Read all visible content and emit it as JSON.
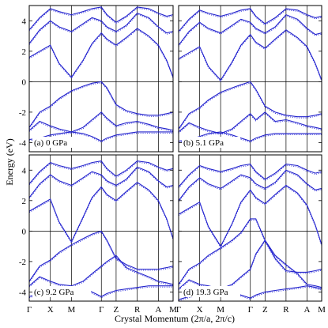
{
  "chart_data": {
    "type": "line",
    "ylabel": "Energy (eV)",
    "xlabel": "Crystal Momentum (2π/a, 2π/c)",
    "ylim": [
      -4.6,
      5.0
    ],
    "yticks": [
      -4,
      -2,
      0,
      2,
      4
    ],
    "kpoints": [
      "Γ",
      "X",
      "M",
      "Γ",
      "Z",
      "R",
      "A",
      "M"
    ],
    "kpositions": [
      0,
      0.707,
      1.414,
      2.414,
      2.908,
      3.615,
      4.322,
      4.815
    ],
    "panels": [
      {
        "label": "(a) 0 GPa",
        "series": [
          {
            "x": [
              0,
              0.35,
              0.707,
              1.0,
              1.414,
              1.8,
              2.1,
              2.414,
              2.6,
              2.908,
              3.25,
              3.615,
              4.0,
              4.322,
              4.6,
              4.815
            ],
            "y": [
              -3.8,
              -3.7,
              -3.5,
              -3.4,
              -3.3,
              -3.4,
              -3.6,
              -3.9,
              -3.7,
              -3.5,
              -3.4,
              -3.3,
              -3.3,
              -3.3,
              -3.3,
              -3.3
            ]
          },
          {
            "x": [
              0,
              0.35,
              0.707,
              1.0,
              1.414,
              1.8,
              2.1,
              2.414,
              2.6,
              2.908,
              3.25,
              3.615,
              4.0,
              4.322,
              4.6,
              4.815
            ],
            "y": [
              -3.2,
              -2.6,
              -2.9,
              -3.1,
              -3.3,
              -3.0,
              -2.5,
              -2.0,
              -2.4,
              -2.9,
              -2.7,
              -2.6,
              -2.8,
              -3.0,
              -3.1,
              -3.2
            ]
          },
          {
            "x": [
              0,
              0.35,
              0.707,
              1.0,
              1.414,
              1.8,
              2.1,
              2.414,
              2.6,
              2.908,
              3.25,
              3.615,
              4.0,
              4.322,
              4.6,
              4.815
            ],
            "y": [
              -3.0,
              -2.0,
              -1.6,
              -1.1,
              -0.6,
              -0.3,
              -0.1,
              0.0,
              -0.4,
              -1.5,
              -1.9,
              -2.1,
              -2.2,
              -2.2,
              -2.1,
              -2.0
            ]
          },
          {
            "x": [
              0,
              0.35,
              0.707,
              1.0,
              1.414,
              1.8,
              2.1,
              2.414,
              2.6,
              2.908,
              3.25,
              3.615,
              4.0,
              4.322,
              4.6,
              4.815
            ],
            "y": [
              1.6,
              2.0,
              2.4,
              1.2,
              0.3,
              1.4,
              2.5,
              3.2,
              2.8,
              2.4,
              2.9,
              3.5,
              3.0,
              2.4,
              1.4,
              0.3
            ]
          },
          {
            "x": [
              0,
              0.35,
              0.707,
              1.0,
              1.414,
              1.8,
              2.1,
              2.414,
              2.6,
              2.908,
              3.25,
              3.615,
              4.0,
              4.322,
              4.6,
              4.815
            ],
            "y": [
              2.5,
              3.4,
              4.0,
              3.6,
              3.3,
              3.8,
              4.2,
              4.0,
              3.6,
              3.3,
              3.7,
              4.5,
              4.2,
              3.6,
              3.2,
              3.3
            ]
          },
          {
            "x": [
              0,
              0.35,
              0.707,
              1.0,
              1.414,
              1.8,
              2.1,
              2.414,
              2.6,
              2.908,
              3.25,
              3.615,
              4.0,
              4.322,
              4.6,
              4.815
            ],
            "y": [
              3.4,
              4.2,
              4.8,
              4.6,
              4.4,
              4.6,
              4.8,
              4.9,
              4.4,
              3.9,
              4.3,
              4.9,
              4.8,
              4.5,
              4.3,
              4.4
            ]
          }
        ]
      },
      {
        "label": "(b) 5.1 GPa",
        "series": [
          {
            "x": [
              0,
              0.35,
              0.707,
              1.0,
              1.414,
              1.8,
              2.1,
              2.414,
              2.6,
              2.908,
              3.25,
              3.615,
              4.0,
              4.322,
              4.6,
              4.815
            ],
            "y": [
              -3.9,
              -3.8,
              -3.6,
              -3.4,
              -3.3,
              -3.5,
              -3.7,
              -3.9,
              -3.7,
              -3.5,
              -3.4,
              -3.4,
              -3.4,
              -3.4,
              -3.4,
              -3.4
            ]
          },
          {
            "x": [
              0,
              0.35,
              0.707,
              1.0,
              1.414,
              1.8,
              2.1,
              2.414,
              2.6,
              2.908,
              3.25,
              3.615,
              4.0,
              4.322,
              4.6,
              4.815
            ],
            "y": [
              -3.3,
              -2.7,
              -3.0,
              -3.2,
              -3.4,
              -3.1,
              -2.6,
              -2.1,
              -2.5,
              -2.0,
              -2.6,
              -2.5,
              -2.7,
              -2.9,
              -3.0,
              -3.1
            ]
          },
          {
            "x": [
              0,
              0.35,
              0.707,
              1.0,
              1.414,
              1.8,
              2.1,
              2.414,
              2.6,
              2.908,
              3.25,
              3.615,
              4.0,
              4.322,
              4.6,
              4.815
            ],
            "y": [
              -3.1,
              -2.1,
              -1.7,
              -1.2,
              -0.7,
              -0.4,
              -0.2,
              0.0,
              -0.5,
              -1.6,
              -2.0,
              -2.2,
              -2.3,
              -2.3,
              -2.2,
              -2.1
            ]
          },
          {
            "x": [
              0,
              0.35,
              0.707,
              1.0,
              1.414,
              1.8,
              2.1,
              2.414,
              2.6,
              2.908,
              3.25,
              3.615,
              4.0,
              4.322,
              4.6,
              4.815
            ],
            "y": [
              1.5,
              1.9,
              2.3,
              1.0,
              0.1,
              1.3,
              2.4,
              3.1,
              2.6,
              2.2,
              2.8,
              3.4,
              2.9,
              2.3,
              1.2,
              0.1
            ]
          },
          {
            "x": [
              0,
              0.35,
              0.707,
              1.0,
              1.414,
              1.8,
              2.1,
              2.414,
              2.6,
              2.908,
              3.25,
              3.615,
              4.0,
              4.322,
              4.6,
              4.815
            ],
            "y": [
              2.4,
              3.3,
              3.9,
              3.5,
              3.2,
              3.7,
              4.1,
              3.9,
              3.5,
              3.2,
              3.6,
              4.4,
              4.1,
              3.5,
              3.1,
              3.2
            ]
          },
          {
            "x": [
              0,
              0.35,
              0.707,
              1.0,
              1.414,
              1.8,
              2.1,
              2.414,
              2.6,
              2.908,
              3.25,
              3.615,
              4.0,
              4.322,
              4.6,
              4.815
            ],
            "y": [
              3.3,
              4.1,
              4.7,
              4.5,
              4.3,
              4.5,
              4.7,
              4.8,
              4.3,
              3.8,
              4.2,
              4.8,
              4.7,
              4.4,
              4.2,
              4.3
            ]
          }
        ]
      },
      {
        "label": "(c) 9.2 GPa",
        "series": [
          {
            "x": [
              0,
              0.35,
              0.707,
              1.0,
              1.414,
              1.8,
              2.1,
              2.414,
              2.6,
              2.908,
              3.25,
              3.615,
              4.0,
              4.322,
              4.6,
              4.815
            ],
            "y": [
              -4.3,
              -4.1,
              -3.9,
              -3.8,
              -3.7,
              -3.8,
              -4.0,
              -4.3,
              -4.1,
              -3.9,
              -3.8,
              -3.7,
              -3.6,
              -3.6,
              -3.6,
              -3.6
            ]
          },
          {
            "x": [
              0,
              0.35,
              0.707,
              1.0,
              1.414,
              1.8,
              2.1,
              2.414,
              2.6,
              2.908,
              3.25,
              3.615,
              4.0,
              4.322,
              4.6,
              4.815
            ],
            "y": [
              -3.6,
              -3.0,
              -3.3,
              -3.5,
              -3.6,
              -3.3,
              -2.8,
              -2.3,
              -2.0,
              -1.6,
              -2.4,
              -2.7,
              -3.0,
              -3.3,
              -3.4,
              -3.5
            ]
          },
          {
            "x": [
              0,
              0.35,
              0.707,
              1.0,
              1.414,
              1.8,
              2.1,
              2.414,
              2.6,
              2.908,
              3.25,
              3.615,
              4.0,
              4.322,
              4.6,
              4.815
            ],
            "y": [
              -3.3,
              -2.3,
              -1.9,
              -1.4,
              -0.9,
              -0.5,
              -0.2,
              0.0,
              -0.6,
              -1.8,
              -2.2,
              -2.5,
              -2.5,
              -2.5,
              -2.4,
              -2.3
            ]
          },
          {
            "x": [
              0,
              0.35,
              0.707,
              1.0,
              1.414,
              1.8,
              2.1,
              2.414,
              2.6,
              2.908,
              3.25,
              3.615,
              4.0,
              4.322,
              4.6,
              4.815
            ],
            "y": [
              1.3,
              1.7,
              2.1,
              0.6,
              -0.7,
              0.9,
              2.2,
              2.9,
              2.4,
              2.0,
              2.6,
              3.2,
              2.7,
              2.0,
              0.8,
              -0.5
            ]
          },
          {
            "x": [
              0,
              0.35,
              0.707,
              1.0,
              1.414,
              1.8,
              2.1,
              2.414,
              2.6,
              2.908,
              3.25,
              3.615,
              4.0,
              4.322,
              4.6,
              4.815
            ],
            "y": [
              2.2,
              3.1,
              3.7,
              3.3,
              3.0,
              3.5,
              3.9,
              3.7,
              3.3,
              3.0,
              3.4,
              4.2,
              3.9,
              3.3,
              2.9,
              3.0
            ]
          },
          {
            "x": [
              0,
              0.35,
              0.707,
              1.0,
              1.414,
              1.8,
              2.1,
              2.414,
              2.6,
              2.908,
              3.25,
              3.615,
              4.0,
              4.322,
              4.6,
              4.815
            ],
            "y": [
              3.1,
              3.9,
              4.5,
              4.3,
              4.1,
              4.3,
              4.5,
              4.6,
              4.1,
              3.6,
              4.0,
              4.6,
              4.5,
              4.2,
              4.0,
              4.1
            ]
          }
        ]
      },
      {
        "label": "(d) 19.3 GPa",
        "series": [
          {
            "x": [
              0,
              0.35,
              0.707,
              1.0,
              1.414,
              1.8,
              2.1,
              2.414,
              2.6,
              2.908,
              3.25,
              3.615,
              4.0,
              4.322,
              4.6,
              4.815
            ],
            "y": [
              -4.5,
              -4.3,
              -4.1,
              -3.9,
              -3.8,
              -4.0,
              -4.2,
              -4.4,
              -4.2,
              -4.0,
              -3.9,
              -3.8,
              -3.7,
              -3.6,
              -3.7,
              -3.8
            ]
          },
          {
            "x": [
              0,
              0.35,
              0.707,
              1.0,
              1.414,
              1.8,
              2.1,
              2.414,
              2.6,
              2.908,
              3.25,
              3.615,
              4.0,
              4.322,
              4.6,
              4.815
            ],
            "y": [
              -3.8,
              -3.2,
              -3.5,
              -3.6,
              -3.8,
              -3.5,
              -3.0,
              -2.5,
              -1.5,
              -0.6,
              -1.6,
              -2.2,
              -2.8,
              -3.5,
              -3.6,
              -3.7
            ]
          },
          {
            "x": [
              0,
              0.35,
              0.707,
              1.0,
              1.414,
              1.8,
              2.1,
              2.414,
              2.6,
              2.908,
              3.25,
              3.615,
              4.0,
              4.322,
              4.6,
              4.815
            ],
            "y": [
              -3.5,
              -2.5,
              -2.1,
              -1.6,
              -1.1,
              -0.6,
              -0.1,
              0.8,
              0.8,
              -0.6,
              -1.8,
              -2.6,
              -2.7,
              -2.7,
              -2.6,
              -2.5
            ]
          },
          {
            "x": [
              0,
              0.35,
              0.707,
              1.0,
              1.414,
              1.8,
              2.1,
              2.414,
              2.6,
              2.908,
              3.25,
              3.615,
              4.0,
              4.322,
              4.6,
              4.815
            ],
            "y": [
              1.1,
              1.5,
              1.9,
              0.3,
              -1.0,
              0.5,
              1.9,
              2.7,
              2.2,
              1.8,
              2.4,
              3.0,
              2.5,
              1.7,
              0.4,
              -0.9
            ]
          },
          {
            "x": [
              0,
              0.35,
              0.707,
              1.0,
              1.414,
              1.8,
              2.1,
              2.414,
              2.6,
              2.908,
              3.25,
              3.615,
              4.0,
              4.322,
              4.6,
              4.815
            ],
            "y": [
              2.0,
              2.9,
              3.5,
              3.1,
              2.8,
              3.3,
              3.7,
              3.5,
              3.1,
              2.8,
              3.2,
              4.0,
              3.7,
              3.1,
              2.7,
              2.8
            ]
          },
          {
            "x": [
              0,
              0.35,
              0.707,
              1.0,
              1.414,
              1.8,
              2.1,
              2.414,
              2.6,
              2.908,
              3.25,
              3.615,
              4.0,
              4.322,
              4.6,
              4.815
            ],
            "y": [
              2.9,
              3.7,
              4.3,
              4.1,
              3.9,
              4.1,
              4.3,
              4.4,
              3.9,
              3.4,
              3.8,
              4.4,
              4.3,
              4.0,
              3.8,
              3.9
            ]
          }
        ]
      }
    ],
    "grid": false,
    "line_color": "#2222cc"
  }
}
